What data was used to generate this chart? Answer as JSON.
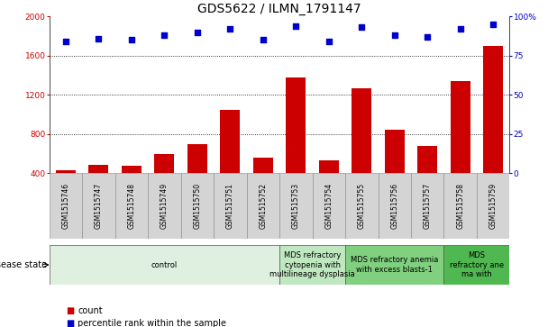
{
  "title": "GDS5622 / ILMN_1791147",
  "samples": [
    "GSM1515746",
    "GSM1515747",
    "GSM1515748",
    "GSM1515749",
    "GSM1515750",
    "GSM1515751",
    "GSM1515752",
    "GSM1515753",
    "GSM1515754",
    "GSM1515755",
    "GSM1515756",
    "GSM1515757",
    "GSM1515758",
    "GSM1515759"
  ],
  "counts": [
    430,
    490,
    480,
    600,
    700,
    1050,
    560,
    1380,
    530,
    1270,
    840,
    680,
    1340,
    1700
  ],
  "percentiles": [
    84,
    86,
    85,
    88,
    90,
    92,
    85,
    94,
    84,
    93,
    88,
    87,
    92,
    95
  ],
  "bar_color": "#cc0000",
  "dot_color": "#0000cc",
  "ylim_left": [
    400,
    2000
  ],
  "ylim_right": [
    0,
    100
  ],
  "yticks_left": [
    400,
    800,
    1200,
    1600,
    2000
  ],
  "yticks_right": [
    0,
    25,
    50,
    75,
    100
  ],
  "disease_groups": [
    {
      "label": "control",
      "start": 0,
      "end": 7,
      "color": "#e0f0e0"
    },
    {
      "label": "MDS refractory\ncytopenia with\nmultilineage dysplasia",
      "start": 7,
      "end": 9,
      "color": "#c0e8c0"
    },
    {
      "label": "MDS refractory anemia\nwith excess blasts-1",
      "start": 9,
      "end": 12,
      "color": "#80d080"
    },
    {
      "label": "MDS\nrefractory ane\nma with",
      "start": 12,
      "end": 14,
      "color": "#50b850"
    }
  ],
  "background_color": "#ffffff",
  "title_fontsize": 10,
  "tick_fontsize": 6.5,
  "sample_fontsize": 5.5,
  "ann_fontsize": 6,
  "legend_fontsize": 7
}
